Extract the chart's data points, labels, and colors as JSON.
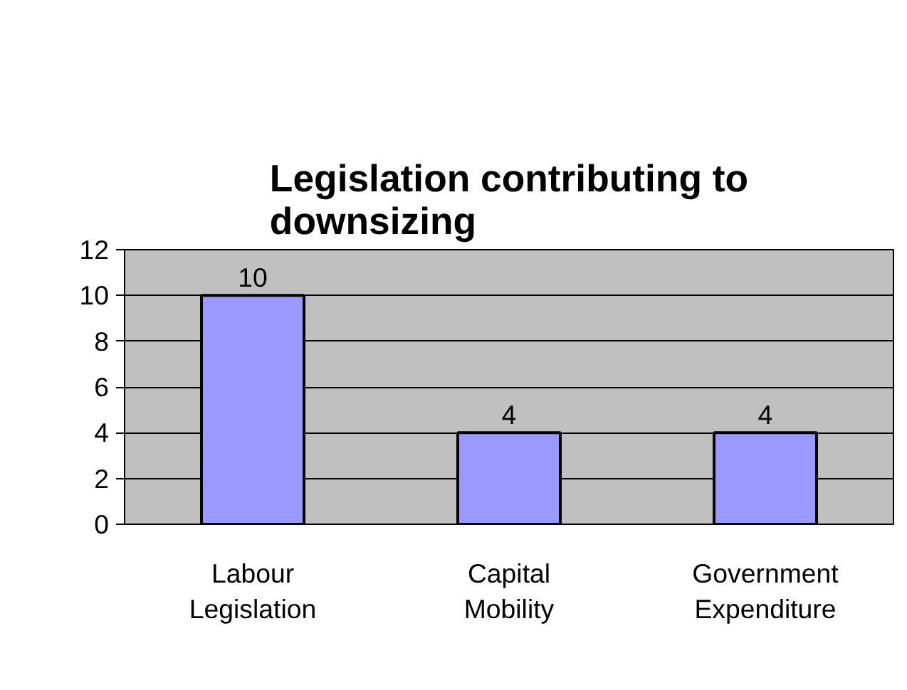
{
  "chart_data": {
    "type": "bar",
    "title": "Legislation contributing to downsizing",
    "categories": [
      "Labour Legislation",
      "Capital Mobility",
      "Government Expenditure"
    ],
    "values": [
      10,
      4,
      4
    ],
    "color": "#9999ff",
    "data_labels": true,
    "ylim": [
      0,
      12
    ],
    "yticks": [
      0,
      2,
      4,
      6,
      8,
      10,
      12
    ],
    "grid": "y"
  }
}
